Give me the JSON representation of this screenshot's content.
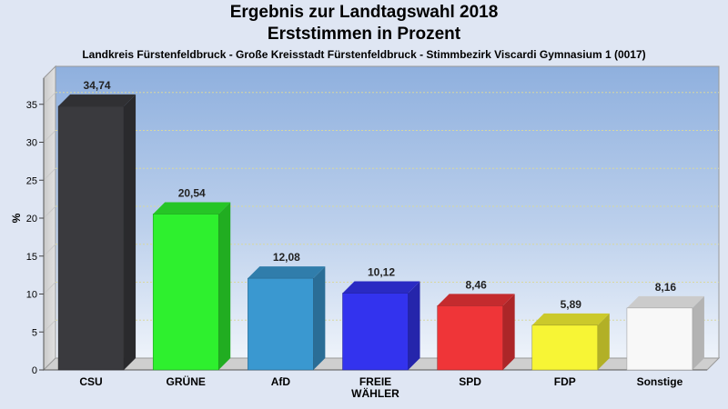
{
  "chart_data": {
    "type": "bar",
    "title": "Ergebnis zur Landtagswahl 2018",
    "subtitle": "Erststimmen in Prozent",
    "caption": "Landkreis Fürstenfeldbruck - Große Kreisstadt Fürstenfeldbruck - Stimmbezirk Viscardi Gymnasium 1 (0017)",
    "ylabel": "%",
    "ylim": [
      0,
      40
    ],
    "yticks": [
      0,
      5,
      10,
      15,
      20,
      25,
      30,
      35
    ],
    "categories": [
      [
        "CSU"
      ],
      [
        "GRÜNE"
      ],
      [
        "AfD"
      ],
      [
        "FREIE",
        "WÄHLER"
      ],
      [
        "SPD"
      ],
      [
        "FDP"
      ],
      [
        "Sonstige"
      ]
    ],
    "values": [
      34.74,
      20.54,
      12.08,
      10.12,
      8.46,
      5.89,
      8.16
    ],
    "value_labels": [
      "34,74",
      "20,54",
      "12,08",
      "10,12",
      "8,46",
      "5,89",
      "8,16"
    ],
    "colors": [
      "#3a3a3e",
      "#2ef02e",
      "#3a98d0",
      "#3333ee",
      "#ef3538",
      "#f7f535",
      "#f8f8f8"
    ],
    "grid": true
  }
}
